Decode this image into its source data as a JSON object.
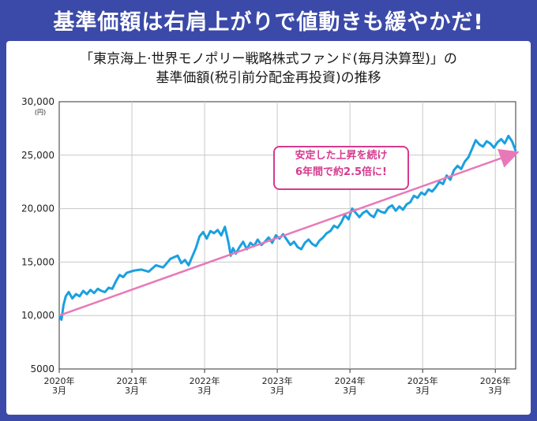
{
  "header": {
    "title": "基準価額は右肩上がりで値動きも緩やかだ!",
    "subtitle_line1": "「東京海上·世界モノポリー戦略株式ファンド(毎月決算型)」の",
    "subtitle_line2": "基準価額(税引前分配金再投資)の推移"
  },
  "annotation": {
    "line1": "安定した上昇を続け",
    "line2": "6年間で約2.5倍に!"
  },
  "colors": {
    "background": "#3b4aa8",
    "series": "#1aa0e0",
    "trend": "#e879b8",
    "annotation": "#d63b8e"
  },
  "chart_data": {
    "type": "line",
    "title": "基準価額は右肩上がりで値動きも緩やかだ!",
    "yunit": "(円)",
    "ylim": [
      5000,
      30000
    ],
    "yticks": [
      5000,
      10000,
      15000,
      20000,
      25000,
      30000
    ],
    "ytick_labels": [
      "5000",
      "10,000",
      "15,000",
      "20,000",
      "25,000",
      "30,000"
    ],
    "xticks": [
      {
        "x": 2020.17,
        "year": "2020年",
        "month": "3月"
      },
      {
        "x": 2021.17,
        "year": "2021年",
        "month": "3月"
      },
      {
        "x": 2022.17,
        "year": "2022年",
        "month": "3月"
      },
      {
        "x": 2023.17,
        "year": "2023年",
        "month": "3月"
      },
      {
        "x": 2024.17,
        "year": "2024年",
        "month": "3月"
      },
      {
        "x": 2025.17,
        "year": "2025年",
        "month": "3月"
      },
      {
        "x": 2026.17,
        "year": "2026年",
        "month": "3月"
      }
    ],
    "xlim": [
      2020.17,
      2026.45
    ],
    "grid": true,
    "series": [
      {
        "x": [
          2020.17,
          2020.2,
          2020.23,
          2020.26,
          2020.3,
          2020.35,
          2020.4,
          2020.45,
          2020.5,
          2020.55,
          2020.6,
          2020.65,
          2020.7,
          2020.75,
          2020.8,
          2020.85,
          2020.9,
          2020.95,
          2021.0,
          2021.05,
          2021.1,
          2021.15,
          2021.2,
          2021.3,
          2021.4,
          2021.5,
          2021.6,
          2021.7,
          2021.8,
          2021.85,
          2021.9,
          2021.95,
          2022.0,
          2022.05,
          2022.1,
          2022.15,
          2022.2,
          2022.25,
          2022.3,
          2022.35,
          2022.4,
          2022.45,
          2022.5,
          2022.53,
          2022.56,
          2022.6,
          2022.65,
          2022.7,
          2022.75,
          2022.8,
          2022.85,
          2022.9,
          2022.95,
          2023.0,
          2023.05,
          2023.1,
          2023.15,
          2023.2,
          2023.25,
          2023.3,
          2023.35,
          2023.4,
          2023.45,
          2023.5,
          2023.55,
          2023.6,
          2023.65,
          2023.7,
          2023.75,
          2023.8,
          2023.85,
          2023.9,
          2023.95,
          2024.0,
          2024.05,
          2024.1,
          2024.15,
          2024.2,
          2024.25,
          2024.3,
          2024.35,
          2024.4,
          2024.45,
          2024.5,
          2024.55,
          2024.6,
          2024.65,
          2024.7,
          2024.75,
          2024.8,
          2024.85,
          2024.9,
          2024.95,
          2025.0,
          2025.05,
          2025.1,
          2025.15,
          2025.2,
          2025.25,
          2025.3,
          2025.35,
          2025.4,
          2025.45,
          2025.5,
          2025.55,
          2025.6,
          2025.65,
          2025.7,
          2025.75,
          2025.8,
          2025.85,
          2025.9,
          2025.95,
          2026.0,
          2026.05,
          2026.1,
          2026.15,
          2026.2,
          2026.25,
          2026.3,
          2026.35,
          2026.4,
          2026.45
        ],
        "values": [
          10000,
          9600,
          11000,
          11800,
          12200,
          11600,
          12000,
          11800,
          12300,
          12000,
          12400,
          12100,
          12500,
          12300,
          12200,
          12600,
          12500,
          13200,
          13800,
          13600,
          14000,
          14100,
          14200,
          14300,
          14100,
          14700,
          14500,
          15300,
          15600,
          14900,
          15200,
          14700,
          15500,
          16300,
          17400,
          17800,
          17200,
          17900,
          17700,
          18000,
          17500,
          18300,
          16800,
          15600,
          16300,
          15800,
          16400,
          16900,
          16200,
          16800,
          16500,
          17100,
          16600,
          16900,
          17300,
          16800,
          17500,
          17200,
          17600,
          17100,
          16600,
          16900,
          16400,
          16200,
          16800,
          17100,
          16700,
          16500,
          17000,
          17300,
          17700,
          17900,
          18400,
          18200,
          18700,
          19400,
          19000,
          20000,
          19600,
          19200,
          19600,
          19800,
          19400,
          19200,
          19900,
          19700,
          19600,
          20100,
          20300,
          19800,
          20200,
          19900,
          20400,
          20600,
          21200,
          21000,
          21500,
          21300,
          21800,
          21600,
          22000,
          22500,
          22300,
          23100,
          22700,
          23600,
          24000,
          23700,
          24400,
          24800,
          25600,
          26400,
          26000,
          25800,
          26300,
          26100,
          25700,
          26200,
          26500,
          26100,
          26800,
          26300,
          25400
        ],
        "color": "#1aa0e0"
      },
      {
        "x": [
          2020.17,
          2026.45
        ],
        "values": [
          10000,
          25200
        ],
        "color": "#e879b8",
        "style": "arrow"
      }
    ]
  }
}
